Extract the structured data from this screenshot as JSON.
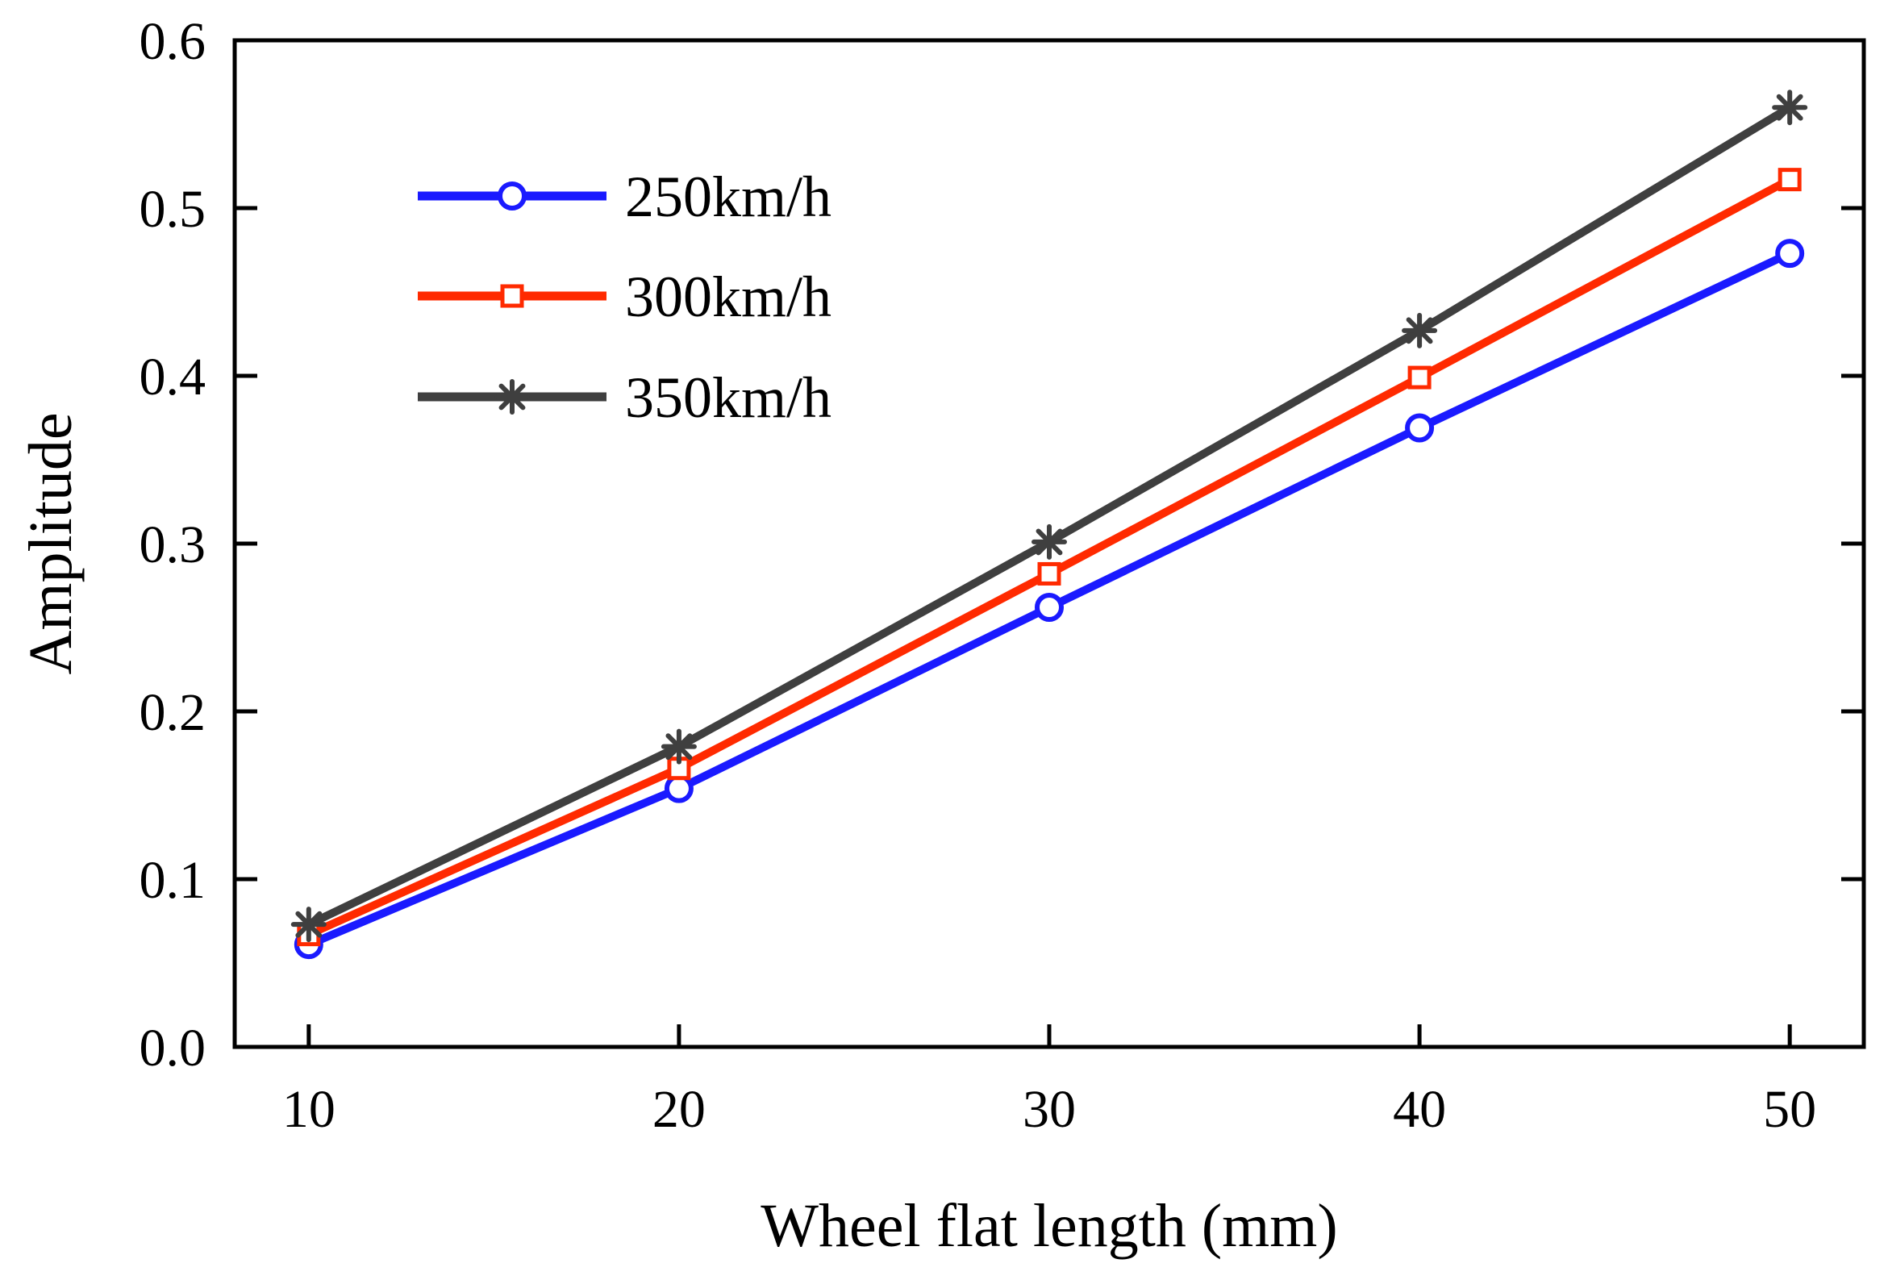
{
  "chart_data": {
    "type": "line",
    "title": "",
    "xlabel": "Wheel flat length (mm)",
    "ylabel": "Amplitude",
    "x": [
      10,
      20,
      30,
      40,
      50
    ],
    "x_tick_labels": [
      "10",
      "20",
      "30",
      "40",
      "50"
    ],
    "y_tick_labels": [
      "0.0",
      "0.1",
      "0.2",
      "0.3",
      "0.4",
      "0.5",
      "0.6"
    ],
    "xlim": [
      8,
      52
    ],
    "ylim": [
      0,
      0.6
    ],
    "legend_position": "top-left",
    "grid": false,
    "series": [
      {
        "name": "250km/h",
        "color": "#1a1aff",
        "marker": "circle",
        "values": [
          0.061,
          0.154,
          0.262,
          0.369,
          0.473
        ]
      },
      {
        "name": "300km/h",
        "color": "#ff2a00",
        "marker": "square",
        "values": [
          0.067,
          0.166,
          0.282,
          0.399,
          0.517
        ]
      },
      {
        "name": "350km/h",
        "color": "#3f3f3f",
        "marker": "asterisk",
        "values": [
          0.073,
          0.179,
          0.301,
          0.427,
          0.56
        ]
      }
    ]
  }
}
